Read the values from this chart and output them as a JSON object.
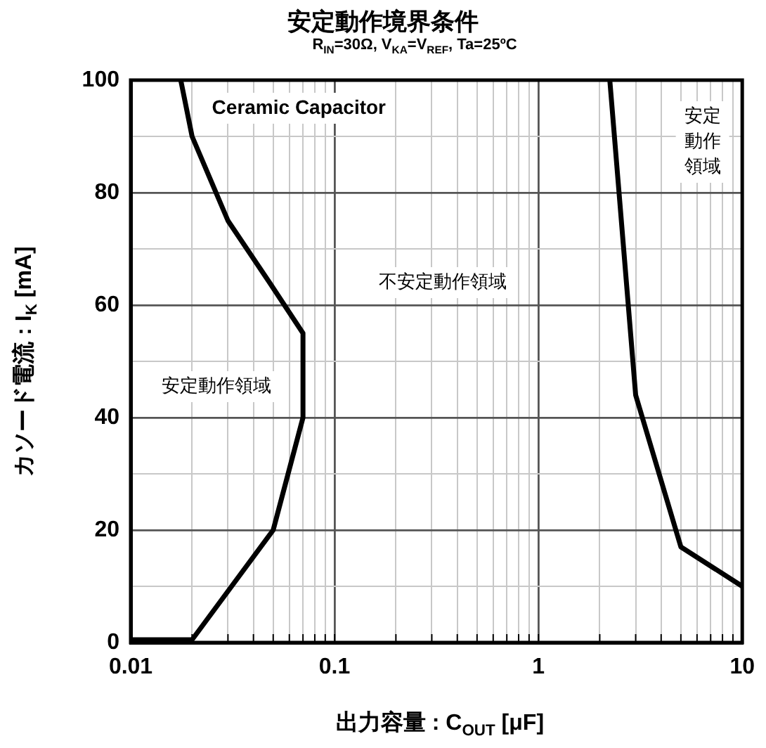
{
  "chart_data": {
    "type": "line",
    "title": "安定動作境界条件",
    "subtitle": "R$_{IN}$=30Ω, V$_{KA}$=V$_{REF}$, Ta=25ºC",
    "xlabel": "出力容量 : C$_{OUT}$ [μF]",
    "ylabel": "カソード電流 : I$_{K}$ [mA]",
    "series": [
      {
        "color": "#000000",
        "x": [
          0.0176,
          0.02,
          0.03,
          0.048,
          0.07,
          0.07,
          0.05,
          0.02,
          0.01
        ],
        "values": [
          100,
          90,
          75,
          64,
          55,
          40,
          20,
          0.5,
          0.5
        ]
      },
      {
        "color": "#000000",
        "x": [
          2.24,
          3.0,
          5.0,
          10
        ],
        "values": [
          100,
          44,
          17,
          10
        ]
      }
    ],
    "log": "x",
    "xlim": [
      0.01,
      10
    ],
    "ylim": [
      0,
      100
    ],
    "xticks": [
      0.01,
      {
        "value": 0.02,
        "label": null
      },
      {
        "value": 0.03,
        "label": null
      },
      {
        "value": 0.04,
        "label": null
      },
      {
        "value": 0.05,
        "label": null
      },
      {
        "value": 0.06,
        "label": null
      },
      {
        "value": 0.07,
        "label": null
      },
      {
        "value": 0.08,
        "label": null
      },
      {
        "value": 0.09,
        "label": null
      },
      0.1,
      {
        "value": 0.2,
        "label": null
      },
      {
        "value": 0.3,
        "label": null
      },
      {
        "value": 0.4,
        "label": null
      },
      {
        "value": 0.5,
        "label": null
      },
      {
        "value": 0.6,
        "label": null
      },
      {
        "value": 0.7,
        "label": null
      },
      {
        "value": 0.8,
        "label": null
      },
      {
        "value": 0.9,
        "label": null
      },
      1,
      {
        "value": 2,
        "label": null
      },
      {
        "value": 3,
        "label": null
      },
      {
        "value": 4,
        "label": null
      },
      {
        "value": 5,
        "label": null
      },
      {
        "value": 6,
        "label": null
      },
      {
        "value": 7,
        "label": null
      },
      {
        "value": 8,
        "label": null
      },
      {
        "value": 9,
        "label": null
      },
      10
    ],
    "yticks": [
      0,
      {
        "value": 10,
        "label": null
      },
      20,
      {
        "value": 30,
        "label": null
      },
      40,
      {
        "value": 50,
        "label": null
      },
      60,
      {
        "value": 70,
        "label": null
      },
      80,
      {
        "value": 90,
        "label": null
      },
      100
    ],
    "grid": true,
    "marker": "none",
    "line_style": "solid",
    "annotations": [
      "Ceramic Capacitor",
      "不安定動作領域",
      "安定動作領域",
      "安定動作領域"
    ]
  }
}
